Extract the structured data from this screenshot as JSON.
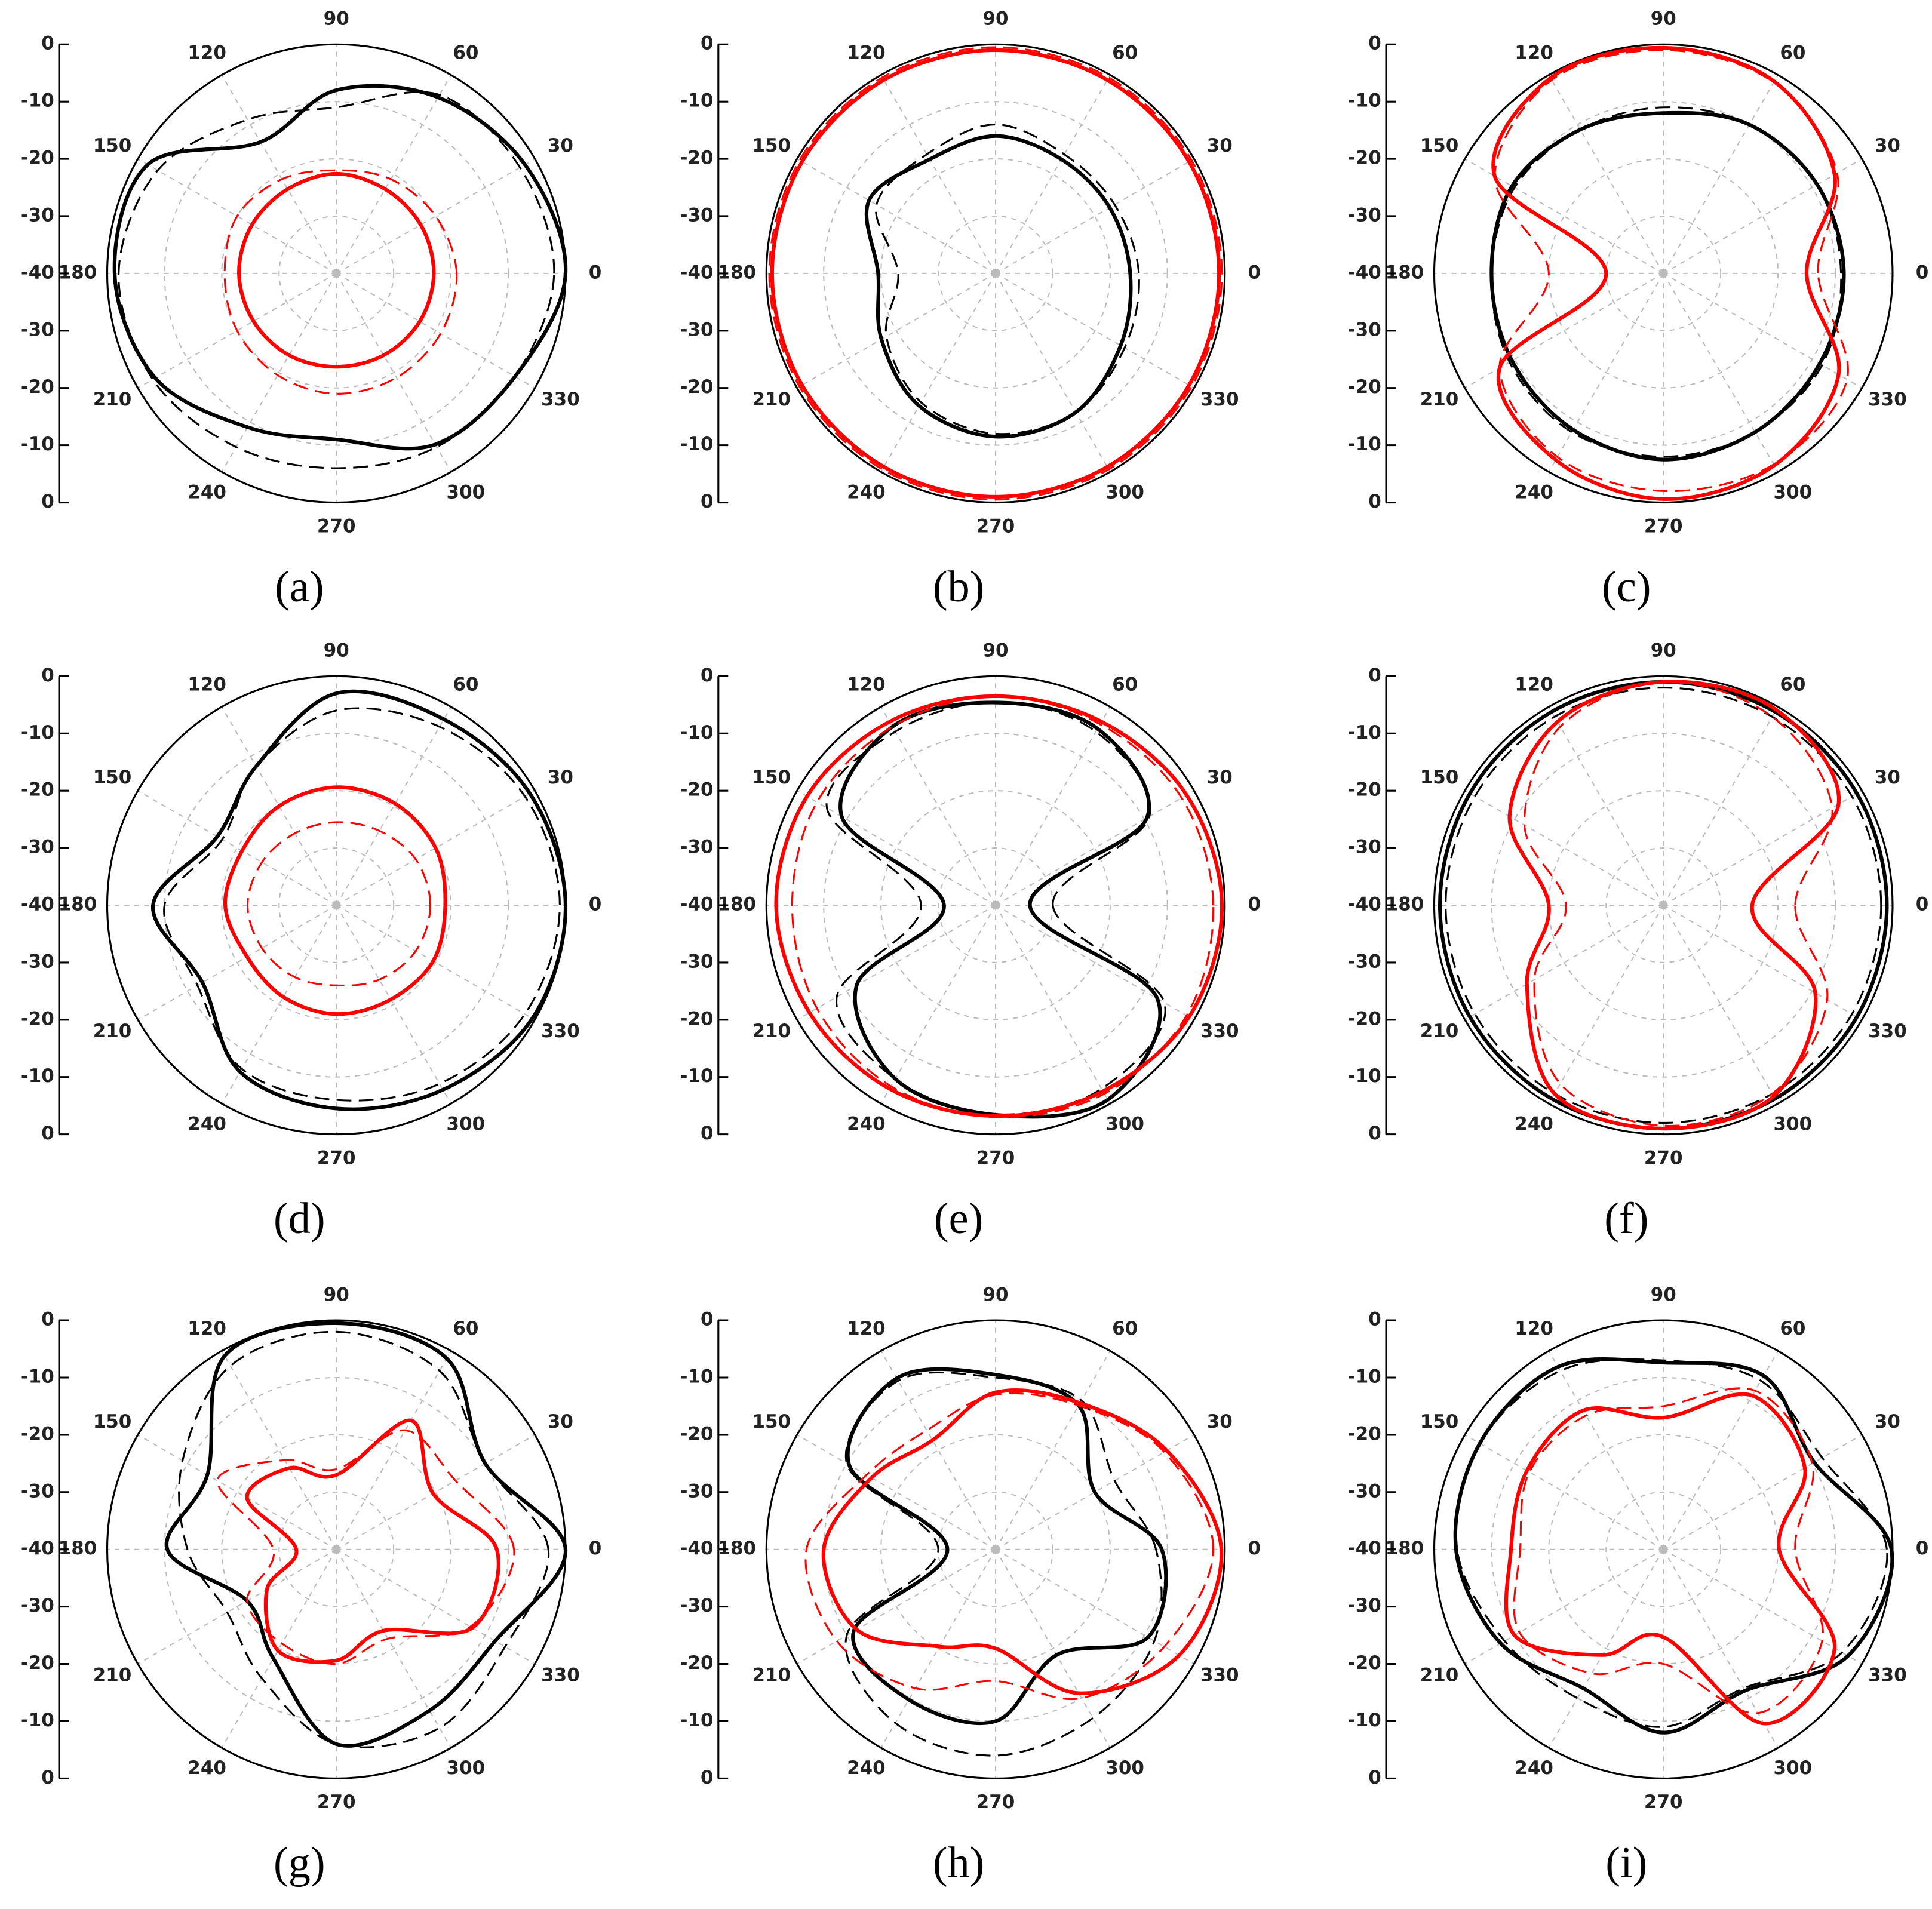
{
  "chart_data": [
    {
      "type": "polar",
      "label": "(a)",
      "theta": [
        0,
        30,
        60,
        90,
        120,
        150,
        180,
        210,
        240,
        270,
        300,
        330
      ],
      "theta_ticks": [
        0,
        30,
        60,
        90,
        120,
        150,
        180,
        210,
        240,
        270,
        300,
        330
      ],
      "rlim": [
        -40,
        0
      ],
      "rticks": [
        -40,
        -30,
        -20,
        -10,
        0
      ],
      "grid": true,
      "series": [
        {
          "color": "#000000",
          "style": "solid",
          "values": [
            0,
            -2,
            -4.5,
            -8,
            -13.5,
            -2,
            -1.3,
            -3.5,
            -9,
            -11,
            -5.5,
            -4
          ]
        },
        {
          "color": "#000000",
          "style": "dashed",
          "values": [
            -2,
            -3,
            -4,
            -11,
            -9,
            -4,
            -2,
            -3,
            -5,
            -6,
            -5,
            -4
          ]
        },
        {
          "color": "#ff0000",
          "style": "solid",
          "values": [
            -23,
            -23,
            -23,
            -22.6,
            -23,
            -23,
            -23,
            -23.3,
            -23.5,
            -23.7,
            -23.5,
            -23.2
          ]
        },
        {
          "color": "#ff0000",
          "style": "dashed",
          "values": [
            -19,
            -20,
            -21,
            -22,
            -21,
            -20,
            -20.5,
            -20,
            -19.5,
            -19,
            -19,
            -19
          ]
        }
      ]
    },
    {
      "type": "polar",
      "label": "(b)",
      "theta": [
        0,
        30,
        60,
        90,
        120,
        150,
        180,
        210,
        240,
        270,
        300,
        330
      ],
      "theta_ticks": [
        0,
        30,
        60,
        90,
        120,
        150,
        180,
        210,
        240,
        270,
        300,
        330
      ],
      "rlim": [
        -40,
        0
      ],
      "rticks": [
        -40,
        -30,
        -20,
        -10,
        0
      ],
      "grid": true,
      "series": [
        {
          "color": "#000000",
          "style": "solid",
          "values": [
            -16.5,
            -17,
            -17,
            -16,
            -17,
            -14.5,
            -19.5,
            -17,
            -13.3,
            -11.5,
            -12,
            -14.8
          ]
        },
        {
          "color": "#000000",
          "style": "dashed",
          "values": [
            -15,
            -16,
            -16,
            -14,
            -16,
            -16,
            -23,
            -18,
            -14,
            -12,
            -12,
            -14
          ]
        },
        {
          "color": "#ff0000",
          "style": "solid",
          "values": [
            -1,
            -1,
            -1,
            -1,
            -1,
            -1,
            -1,
            -1,
            -1,
            -1,
            -1,
            -1
          ]
        },
        {
          "color": "#ff0000",
          "style": "dashed",
          "values": [
            -0.5,
            -0.5,
            -0.5,
            -0.5,
            -0.5,
            -0.5,
            -0.5,
            -0.5,
            -0.5,
            -0.5,
            -0.5,
            -0.5
          ]
        }
      ]
    },
    {
      "type": "polar",
      "label": "(c)",
      "theta": [
        0,
        30,
        60,
        90,
        120,
        150,
        180,
        210,
        240,
        270,
        300,
        330
      ],
      "theta_ticks": [
        0,
        30,
        60,
        90,
        120,
        150,
        180,
        210,
        240,
        270,
        300,
        330
      ],
      "rlim": [
        -40,
        0
      ],
      "rticks": [
        -40,
        -30,
        -20,
        -10,
        0
      ],
      "grid": true,
      "series": [
        {
          "color": "#000000",
          "style": "solid",
          "values": [
            -8.5,
            -9,
            -10,
            -12,
            -11,
            -9.5,
            -10,
            -9.5,
            -8.5,
            -7.5,
            -8,
            -8.5
          ]
        },
        {
          "color": "#000000",
          "style": "dashed",
          "values": [
            -9,
            -9,
            -10,
            -11,
            -11,
            -10,
            -10,
            -9,
            -8,
            -8,
            -8,
            -8
          ]
        },
        {
          "color": "#ff0000",
          "style": "solid",
          "values": [
            -15,
            -5.5,
            -1.3,
            -0.6,
            -0.6,
            -6,
            -30,
            -7,
            -2.4,
            -0.6,
            -1.3,
            -4.7
          ]
        },
        {
          "color": "#ff0000",
          "style": "dashed",
          "values": [
            -13,
            -5,
            -1.5,
            -1,
            -1,
            -6,
            -20,
            -7,
            -3,
            -2,
            -1.5,
            -3
          ]
        }
      ]
    },
    {
      "type": "polar",
      "label": "(d)",
      "theta": [
        0,
        30,
        60,
        90,
        120,
        150,
        180,
        210,
        240,
        270,
        300,
        330
      ],
      "theta_ticks": [
        0,
        30,
        60,
        90,
        120,
        150,
        180,
        210,
        240,
        270,
        300,
        330
      ],
      "rlim": [
        -40,
        0
      ],
      "rticks": [
        -40,
        -30,
        -20,
        -10,
        0
      ],
      "grid": true,
      "series": [
        {
          "color": "#000000",
          "style": "solid",
          "values": [
            0,
            -1,
            -2.5,
            -3,
            -12,
            -16,
            -8,
            -13,
            -6.4,
            -4.5,
            -2.8,
            -0.5
          ]
        },
        {
          "color": "#000000",
          "style": "dashed",
          "values": [
            -1,
            -2,
            -4,
            -6,
            -12,
            -17,
            -10,
            -12,
            -7,
            -6,
            -4,
            -2
          ]
        },
        {
          "color": "#ff0000",
          "style": "solid",
          "values": [
            -21,
            -20,
            -19.5,
            -19.4,
            -20,
            -21,
            -20.6,
            -22,
            -21.5,
            -21,
            -21,
            -20.5
          ]
        },
        {
          "color": "#ff0000",
          "style": "dashed",
          "values": [
            -23.6,
            -24,
            -25,
            -25.5,
            -25.5,
            -25,
            -24.5,
            -25,
            -25.5,
            -26,
            -25,
            -24
          ]
        }
      ]
    },
    {
      "type": "polar",
      "label": "(e)",
      "theta": [
        0,
        30,
        60,
        90,
        120,
        150,
        180,
        210,
        240,
        270,
        300,
        330
      ],
      "theta_ticks": [
        0,
        30,
        60,
        90,
        120,
        150,
        180,
        210,
        240,
        270,
        300,
        330
      ],
      "rlim": [
        -40,
        0
      ],
      "rticks": [
        -40,
        -30,
        -20,
        -10,
        0
      ],
      "grid": true,
      "series": [
        {
          "color": "#000000",
          "style": "solid",
          "values": [
            -34,
            -9.5,
            -4.4,
            -4.6,
            -4,
            -9,
            -31,
            -12,
            -5,
            -3.4,
            -0.8,
            -7.4
          ]
        },
        {
          "color": "#000000",
          "style": "dashed",
          "values": [
            -30,
            -9,
            -5,
            -4.5,
            -5,
            -6,
            -27,
            -8,
            -5,
            -3.5,
            -3,
            -6
          ]
        },
        {
          "color": "#ff0000",
          "style": "solid",
          "values": [
            -0.5,
            -1.5,
            -3,
            -3.5,
            -3,
            -2,
            -1.7,
            -2.5,
            -3,
            -3.2,
            -2.5,
            -1
          ]
        },
        {
          "color": "#ff0000",
          "style": "dashed",
          "values": [
            -2,
            -2.5,
            -3.5,
            -3.5,
            -4,
            -4,
            -4.5,
            -4,
            -3.5,
            -3,
            -2,
            -1.5
          ]
        }
      ]
    },
    {
      "type": "polar",
      "label": "(f)",
      "theta": [
        0,
        30,
        60,
        90,
        120,
        150,
        180,
        210,
        240,
        270,
        300,
        330
      ],
      "theta_ticks": [
        0,
        30,
        60,
        90,
        120,
        150,
        180,
        210,
        240,
        270,
        300,
        330
      ],
      "rlim": [
        -40,
        0
      ],
      "rticks": [
        -40,
        -30,
        -20,
        -10,
        0
      ],
      "grid": true,
      "series": [
        {
          "color": "#000000",
          "style": "solid",
          "values": [
            -1,
            -1,
            -1,
            -1,
            -1,
            -1,
            -1,
            -1,
            -1,
            -1,
            -1,
            -1
          ]
        },
        {
          "color": "#000000",
          "style": "dashed",
          "values": [
            -2,
            -2,
            -2,
            -2,
            -2,
            -2,
            -2,
            -2,
            -2,
            -2,
            -2,
            -2
          ]
        },
        {
          "color": "#ff0000",
          "style": "solid",
          "values": [
            -24.5,
            -4.7,
            -0.6,
            -1,
            -3,
            -9,
            -20,
            -12.5,
            -2,
            -1,
            -1.5,
            -9.4
          ]
        },
        {
          "color": "#ff0000",
          "style": "dashed",
          "values": [
            -17,
            -6,
            -2,
            -1,
            -4,
            -12,
            -23,
            -14,
            -4,
            -1.5,
            -2,
            -7
          ]
        }
      ]
    },
    {
      "type": "polar",
      "label": "(g)",
      "theta": [
        0,
        30,
        60,
        90,
        120,
        150,
        180,
        210,
        240,
        270,
        300,
        330
      ],
      "theta_ticks": [
        0,
        30,
        60,
        90,
        120,
        150,
        180,
        210,
        240,
        270,
        300,
        330
      ],
      "rlim": [
        -40,
        0
      ],
      "rticks": [
        -40,
        -30,
        -20,
        -10,
        0
      ],
      "grid": true,
      "series": [
        {
          "color": "#000000",
          "style": "solid",
          "values": [
            0,
            -10,
            -1.5,
            -0.5,
            -1,
            -14,
            -10.5,
            -22,
            -18,
            -6,
            -7.5,
            -8
          ]
        },
        {
          "color": "#000000",
          "style": "dashed",
          "values": [
            -3,
            -10,
            -4,
            -2,
            -3,
            -9,
            -14,
            -18,
            -14,
            -6,
            -4,
            -6
          ]
        },
        {
          "color": "#ff0000",
          "style": "solid",
          "values": [
            -12,
            -20.5,
            -14,
            -27,
            -23.6,
            -22,
            -33,
            -26,
            -19.6,
            -20.6,
            -23.6,
            -12.6
          ]
        },
        {
          "color": "#ff0000",
          "style": "dashed",
          "values": [
            -9,
            -16,
            -16,
            -26,
            -22,
            -16,
            -29,
            -22,
            -21,
            -20,
            -22,
            -13
          ]
        }
      ]
    },
    {
      "type": "polar",
      "label": "(h)",
      "theta": [
        0,
        30,
        60,
        90,
        120,
        150,
        180,
        210,
        240,
        270,
        300,
        330
      ],
      "theta_ticks": [
        0,
        30,
        60,
        90,
        120,
        150,
        180,
        210,
        240,
        270,
        300,
        330
      ],
      "rlim": [
        -40,
        0
      ],
      "rticks": [
        -40,
        -30,
        -20,
        -10,
        0
      ],
      "grid": true,
      "series": [
        {
          "color": "#000000",
          "style": "solid",
          "values": [
            -11,
            -20,
            -11,
            -9.5,
            -5.5,
            -10.5,
            -31.6,
            -11.4,
            -9.7,
            -10,
            -18.7,
            -9.3
          ]
        },
        {
          "color": "#000000",
          "style": "dashed",
          "values": [
            -12,
            -16,
            -10,
            -10,
            -6,
            -10,
            -30,
            -10,
            -5,
            -4,
            -6,
            -8
          ]
        },
        {
          "color": "#ff0000",
          "style": "solid",
          "values": [
            -0.6,
            -5.5,
            -10.5,
            -12.6,
            -18,
            -15,
            -10,
            -12,
            -20.4,
            -22.7,
            -11,
            -3
          ]
        },
        {
          "color": "#ff0000",
          "style": "dashed",
          "values": [
            -2,
            -6,
            -11,
            -13,
            -16,
            -14,
            -7,
            -8,
            -12,
            -17,
            -10,
            -6
          ]
        }
      ]
    },
    {
      "type": "polar",
      "label": "(i)",
      "theta": [
        0,
        30,
        60,
        90,
        120,
        150,
        180,
        210,
        240,
        270,
        300,
        330
      ],
      "theta_ticks": [
        0,
        30,
        60,
        90,
        120,
        150,
        180,
        210,
        240,
        270,
        300,
        330
      ],
      "rlim": [
        -40,
        0
      ],
      "rticks": [
        -40,
        -30,
        -20,
        -10,
        0
      ],
      "grid": true,
      "series": [
        {
          "color": "#000000",
          "style": "solid",
          "values": [
            -0.2,
            -9.6,
            -5,
            -7.4,
            -3.2,
            -3,
            -3.8,
            -7.2,
            -12,
            -8,
            -11.5,
            -2.8
          ]
        },
        {
          "color": "#000000",
          "style": "dashed",
          "values": [
            -1,
            -8,
            -6,
            -7,
            -4,
            -3,
            -4,
            -8,
            -10,
            -9,
            -12,
            -4
          ]
        },
        {
          "color": "#ff0000",
          "style": "solid",
          "values": [
            -19.8,
            -11.5,
            -9,
            -17,
            -12,
            -12.5,
            -13.4,
            -10,
            -18.7,
            -24.7,
            -4.9,
            -5.5
          ]
        },
        {
          "color": "#ff0000",
          "style": "dashed",
          "values": [
            -17,
            -10,
            -8,
            -15,
            -13,
            -13,
            -15,
            -11,
            -15,
            -20,
            -7,
            -8
          ]
        }
      ]
    }
  ]
}
